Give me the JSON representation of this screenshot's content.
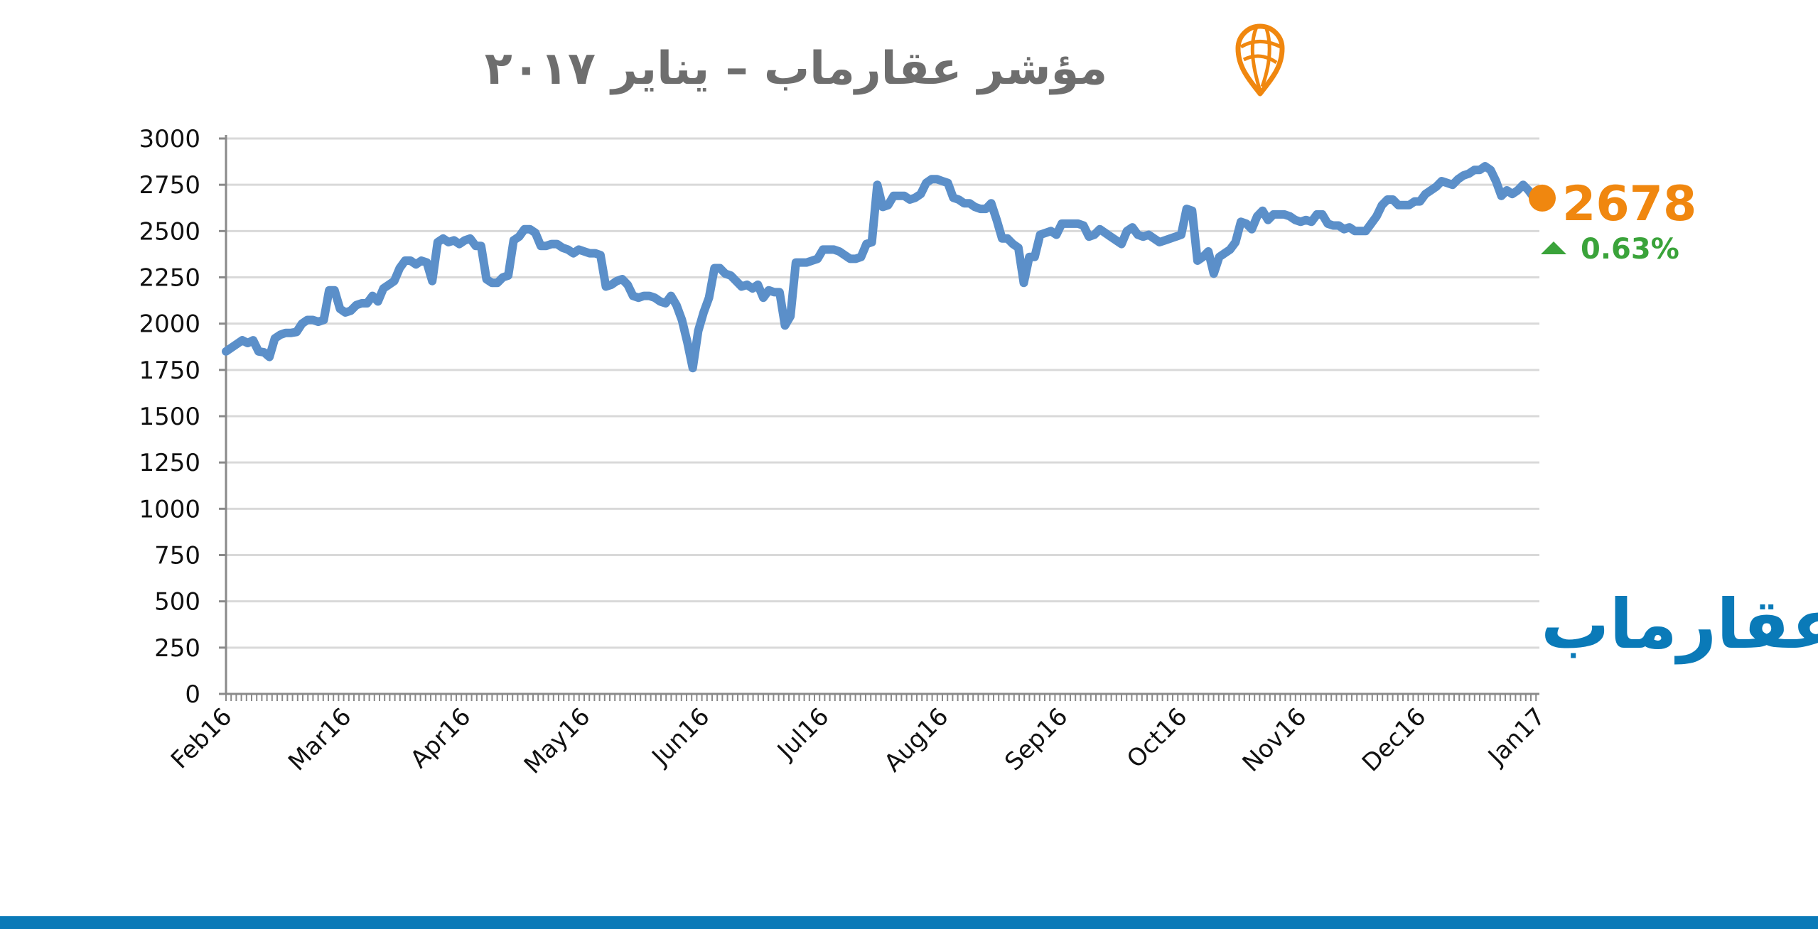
{
  "colors": {
    "line": "#5b8fc9",
    "accent": "#f0870f",
    "positive": "#3aa33a",
    "brand": "#0a7ab8",
    "grid": "#d9d9d9",
    "title": "#6e6e6e",
    "axis": "#8a8a8a"
  },
  "icons": {
    "logo": "map-pin-globe-icon",
    "change": "triangle-up-icon"
  },
  "header": {
    "title": "مؤشر عقارماب – يناير ٢٠١٧"
  },
  "highlight": {
    "last_value": "2678",
    "change": "0.63%"
  },
  "watermark": {
    "text": "عقارماب"
  },
  "chart_data": {
    "type": "line",
    "title": "مؤشر عقارماب – يناير ٢٠١٧",
    "xlabel": "",
    "ylabel": "",
    "ylim": [
      0,
      3000
    ],
    "yticks": [
      "3000",
      "2750",
      "2500",
      "2250",
      "2000",
      "1750",
      "1500",
      "1250",
      "1000",
      "750",
      "500",
      "250",
      "0"
    ],
    "xtick_labels": [
      "Feb16",
      "Mar16",
      "Apr16",
      "May16",
      "Jun16",
      "Jul16",
      "Aug16",
      "Sep16",
      "Oct16",
      "Nov16",
      "Dec16",
      "Jan17"
    ],
    "grid": true,
    "series": [
      {
        "values": [
          1850,
          1870,
          1890,
          1910,
          1895,
          1910,
          1850,
          1845,
          1820,
          1920,
          1940,
          1950,
          1950,
          1955,
          2000,
          2020,
          2020,
          2010,
          2020,
          2180,
          2180,
          2080,
          2060,
          2070,
          2100,
          2110,
          2110,
          2150,
          2120,
          2190,
          2210,
          2230,
          2300,
          2340,
          2340,
          2320,
          2340,
          2330,
          2230,
          2440,
          2460,
          2440,
          2450,
          2430,
          2450,
          2460,
          2420,
          2420,
          2240,
          2220,
          2220,
          2250,
          2260,
          2450,
          2470,
          2510,
          2510,
          2490,
          2420,
          2420,
          2430,
          2430,
          2410,
          2400,
          2380,
          2400,
          2390,
          2380,
          2380,
          2370,
          2200,
          2210,
          2230,
          2240,
          2210,
          2150,
          2140,
          2150,
          2150,
          2140,
          2120,
          2110,
          2150,
          2100,
          2020,
          1900,
          1760,
          1960,
          2060,
          2140,
          2300,
          2300,
          2270,
          2260,
          2230,
          2200,
          2210,
          2190,
          2210,
          2140,
          2180,
          2170,
          2170,
          1990,
          2040,
          2330,
          2330,
          2330,
          2340,
          2350,
          2400,
          2400,
          2400,
          2390,
          2370,
          2350,
          2350,
          2360,
          2430,
          2440,
          2750,
          2630,
          2640,
          2690,
          2690,
          2690,
          2670,
          2680,
          2700,
          2760,
          2780,
          2780,
          2770,
          2760,
          2680,
          2670,
          2650,
          2650,
          2630,
          2620,
          2620,
          2650,
          2560,
          2460,
          2460,
          2430,
          2410,
          2220,
          2360,
          2360,
          2480,
          2490,
          2500,
          2480,
          2540,
          2540,
          2540,
          2540,
          2530,
          2470,
          2480,
          2510,
          2490,
          2470,
          2450,
          2430,
          2500,
          2520,
          2480,
          2470,
          2480,
          2460,
          2440,
          2450,
          2460,
          2470,
          2480,
          2620,
          2610,
          2340,
          2360,
          2390,
          2270,
          2360,
          2380,
          2400,
          2440,
          2550,
          2540,
          2510,
          2580,
          2610,
          2560,
          2590,
          2590,
          2590,
          2580,
          2560,
          2550,
          2560,
          2550,
          2590,
          2590,
          2540,
          2530,
          2530,
          2510,
          2520,
          2500,
          2500,
          2500,
          2540,
          2580,
          2640,
          2670,
          2670,
          2640,
          2640,
          2640,
          2660,
          2660,
          2700,
          2720,
          2740,
          2770,
          2760,
          2750,
          2780,
          2800,
          2810,
          2830,
          2830,
          2850,
          2830,
          2770,
          2690,
          2720,
          2700,
          2720,
          2750,
          2720,
          2680,
          2678
        ]
      }
    ]
  }
}
